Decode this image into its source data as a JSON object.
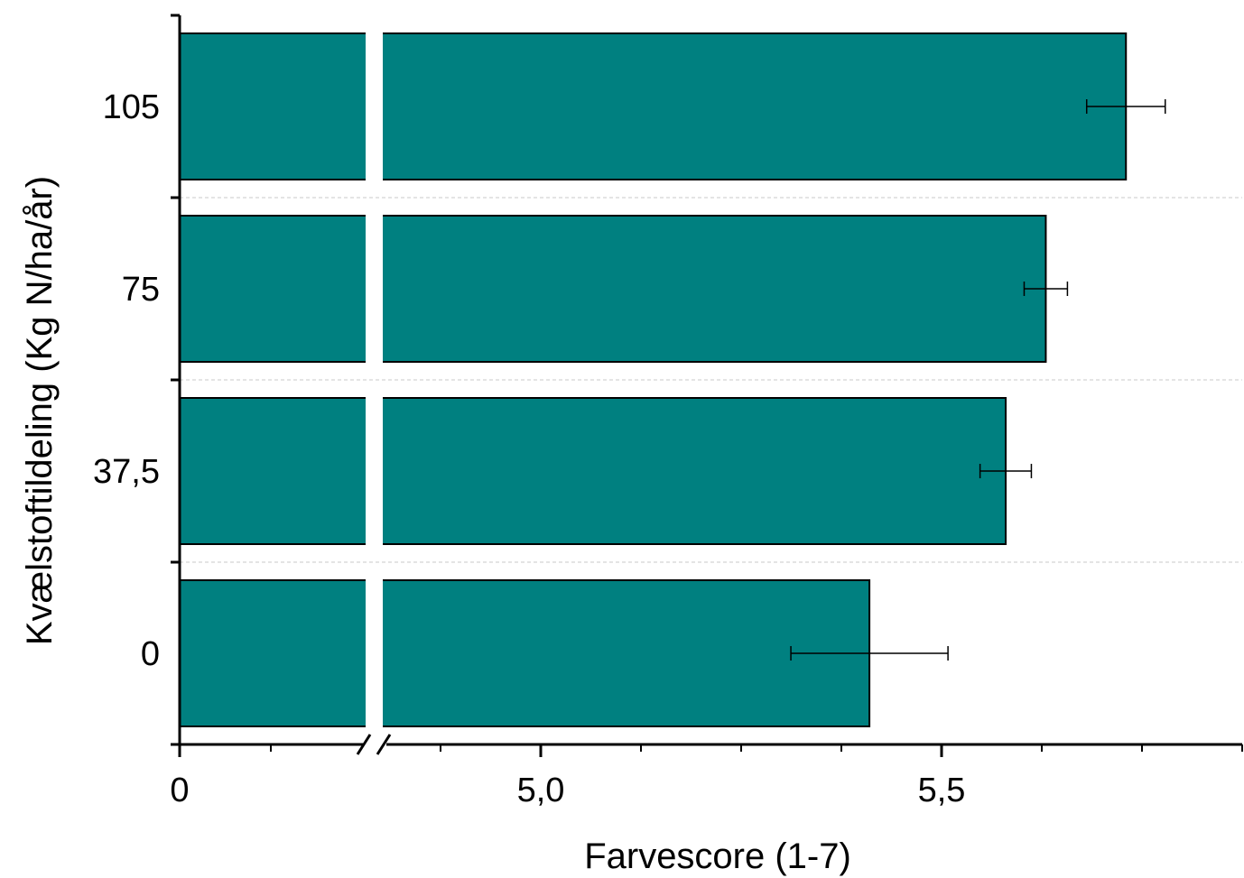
{
  "chart_data": {
    "type": "bar",
    "orientation": "horizontal",
    "title": "",
    "xlabel": "Farvescore (1-7)",
    "ylabel": "Kvælstoftildeling (Kg N/ha/år)",
    "categories": [
      "0",
      "37,5",
      "75",
      "105"
    ],
    "values": [
      5.41,
      5.58,
      5.63,
      5.73
    ],
    "errors": [
      0.098,
      0.032,
      0.027,
      0.049
    ],
    "x_axis_break": true,
    "x_ticks": [
      {
        "value": 0,
        "label": "0"
      },
      {
        "value": 5.0,
        "label": "5,0"
      },
      {
        "value": 5.5,
        "label": "5,5"
      }
    ],
    "xlim_after_break": [
      4.82,
      5.81
    ],
    "grid": "dashed horizontal separators between categories",
    "bar_color": "#008080",
    "error_bar_color": "#000000"
  }
}
